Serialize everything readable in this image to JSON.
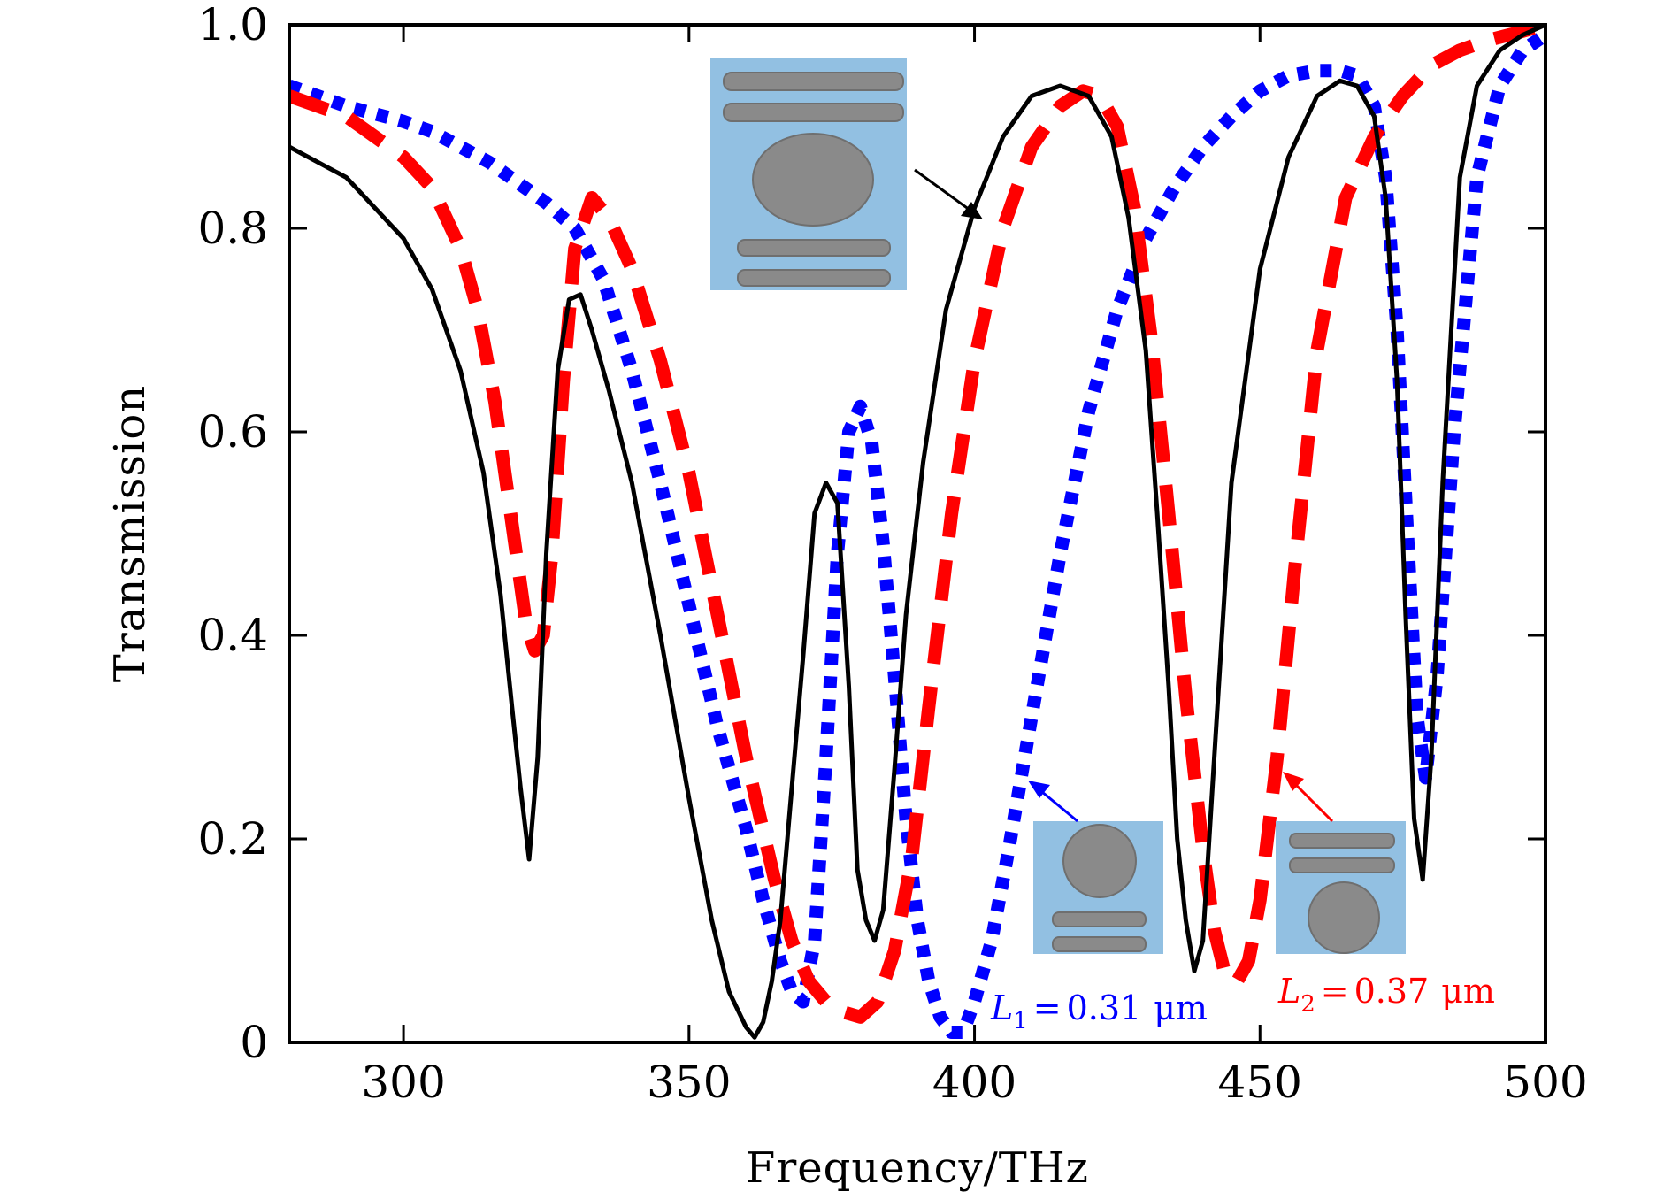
{
  "chart_data": {
    "type": "line",
    "xlabel": "Frequency/THz",
    "ylabel": "Transmission",
    "xlim": [
      280,
      500
    ],
    "ylim": [
      0,
      1.0
    ],
    "xticks": [
      300,
      350,
      400,
      450,
      500
    ],
    "xtick_labels": [
      "300",
      "350",
      "400",
      "450",
      "500"
    ],
    "yticks": [
      0,
      0.2,
      0.4,
      0.6,
      0.8,
      1.0
    ],
    "ytick_labels": [
      "0",
      "0.2",
      "0.4",
      "0.6",
      "0.8",
      "1.0"
    ],
    "grid": false,
    "series": [
      {
        "style": "solid",
        "color": "#000000",
        "x": [
          280,
          290,
          300,
          305,
          310,
          314,
          317,
          319,
          320.5,
          322,
          323.5,
          325,
          327,
          329,
          331,
          333,
          336,
          340,
          345,
          350,
          354,
          357,
          360,
          361.5,
          363,
          364.5,
          366,
          368,
          370,
          372,
          374,
          376,
          378,
          379.5,
          381,
          382.5,
          384,
          386,
          388,
          391,
          395,
          400,
          405,
          410,
          415,
          420,
          424,
          427,
          430,
          432,
          434,
          435.5,
          437,
          438.5,
          440,
          442,
          445,
          450,
          455,
          460,
          464,
          467,
          470,
          472,
          474,
          475.5,
          477,
          478.5,
          480,
          482,
          485,
          488,
          492,
          496,
          500
        ],
        "y": [
          0.88,
          0.85,
          0.79,
          0.74,
          0.66,
          0.56,
          0.44,
          0.33,
          0.25,
          0.18,
          0.28,
          0.48,
          0.66,
          0.73,
          0.735,
          0.7,
          0.64,
          0.55,
          0.4,
          0.24,
          0.12,
          0.05,
          0.015,
          0.005,
          0.02,
          0.06,
          0.12,
          0.25,
          0.38,
          0.52,
          0.55,
          0.53,
          0.35,
          0.17,
          0.12,
          0.1,
          0.13,
          0.27,
          0.42,
          0.57,
          0.72,
          0.82,
          0.89,
          0.93,
          0.94,
          0.93,
          0.89,
          0.81,
          0.68,
          0.52,
          0.35,
          0.2,
          0.12,
          0.07,
          0.1,
          0.28,
          0.55,
          0.76,
          0.87,
          0.93,
          0.945,
          0.94,
          0.91,
          0.83,
          0.65,
          0.42,
          0.22,
          0.16,
          0.28,
          0.55,
          0.85,
          0.94,
          0.975,
          0.99,
          1.0
        ]
      },
      {
        "style": "dashed",
        "color": "#ff0000",
        "x": [
          280,
          290,
          300,
          305,
          310,
          313,
          316,
          318,
          320,
          321.5,
          323,
          324.5,
          326,
          328,
          330,
          333,
          336,
          340,
          345,
          350,
          355,
          360,
          365,
          368,
          371,
          374,
          377,
          380,
          383,
          386,
          389,
          392,
          396,
          400,
          405,
          410,
          415,
          419,
          422,
          425,
          428,
          431,
          434,
          437,
          440,
          442,
          444,
          446,
          448,
          450,
          453,
          456,
          460,
          465,
          470,
          475,
          480,
          485,
          490,
          495,
          500
        ],
        "y": [
          0.93,
          0.91,
          0.87,
          0.84,
          0.78,
          0.72,
          0.63,
          0.55,
          0.47,
          0.41,
          0.385,
          0.4,
          0.48,
          0.65,
          0.78,
          0.83,
          0.81,
          0.76,
          0.67,
          0.56,
          0.42,
          0.28,
          0.16,
          0.1,
          0.06,
          0.04,
          0.03,
          0.025,
          0.04,
          0.09,
          0.18,
          0.33,
          0.52,
          0.67,
          0.8,
          0.88,
          0.92,
          0.935,
          0.93,
          0.9,
          0.82,
          0.69,
          0.52,
          0.34,
          0.19,
          0.11,
          0.065,
          0.06,
          0.08,
          0.14,
          0.28,
          0.46,
          0.68,
          0.83,
          0.89,
          0.93,
          0.96,
          0.975,
          0.985,
          0.992,
          1.0
        ]
      },
      {
        "style": "dotted",
        "color": "#0000ff",
        "x": [
          280,
          290,
          300,
          305,
          310,
          315,
          320,
          325,
          330,
          335,
          340,
          345,
          350,
          355,
          360,
          363,
          366,
          368,
          370,
          372,
          374,
          376,
          378,
          380,
          382,
          384,
          386,
          388,
          390,
          392,
          394,
          396,
          398,
          400,
          403,
          406,
          410,
          415,
          420,
          425,
          430,
          435,
          440,
          445,
          450,
          455,
          460,
          464,
          467,
          470,
          472,
          474,
          476,
          477.5,
          479,
          481,
          484,
          488,
          492,
          496,
          500
        ],
        "y": [
          0.94,
          0.92,
          0.905,
          0.895,
          0.88,
          0.865,
          0.845,
          0.825,
          0.8,
          0.75,
          0.66,
          0.55,
          0.43,
          0.31,
          0.21,
          0.14,
          0.08,
          0.05,
          0.04,
          0.1,
          0.28,
          0.48,
          0.6,
          0.625,
          0.59,
          0.49,
          0.36,
          0.22,
          0.12,
          0.06,
          0.025,
          0.01,
          0.01,
          0.04,
          0.1,
          0.19,
          0.32,
          0.48,
          0.62,
          0.72,
          0.79,
          0.84,
          0.88,
          0.91,
          0.935,
          0.95,
          0.955,
          0.955,
          0.95,
          0.92,
          0.85,
          0.7,
          0.48,
          0.32,
          0.26,
          0.36,
          0.6,
          0.85,
          0.94,
          0.975,
          0.99
        ]
      }
    ],
    "annotations": [
      {
        "var": "L",
        "sub": "1",
        "value": "0.31",
        "unit": "μm",
        "color": "#0000ff"
      },
      {
        "var": "L",
        "sub": "2",
        "value": "0.37",
        "unit": "μm",
        "color": "#ff0000"
      }
    ]
  }
}
